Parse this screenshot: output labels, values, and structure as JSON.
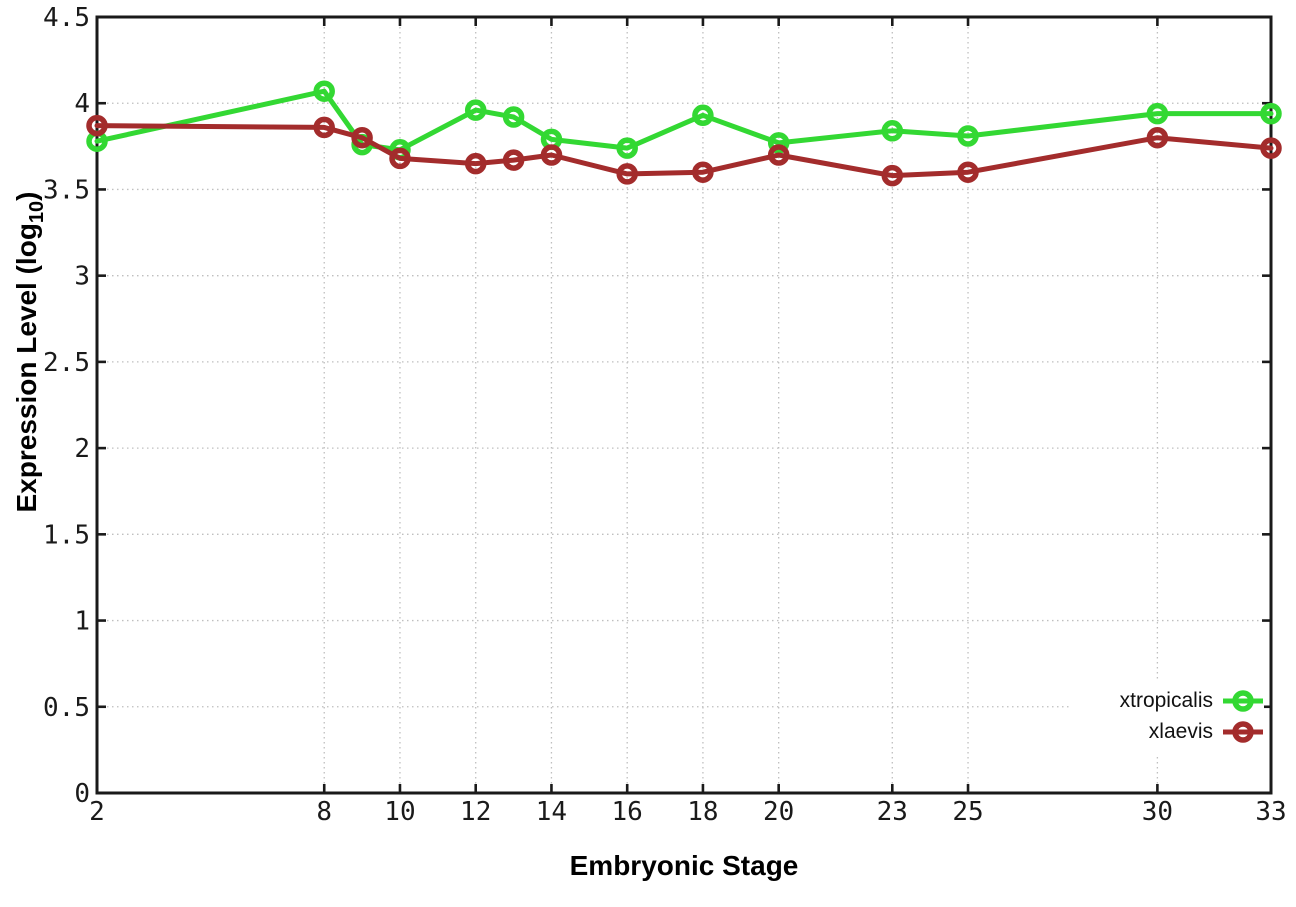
{
  "chart_data": {
    "type": "line",
    "title": "",
    "xlabel": "Embryonic Stage",
    "ylabel": "Expression Level (log10)",
    "ylabel_parts": {
      "main": "Expression Level (log",
      "sub": "10",
      "close": ")"
    },
    "xlim": [
      2,
      33
    ],
    "ylim": [
      0,
      4.5
    ],
    "xticks": [
      2,
      8,
      10,
      12,
      14,
      16,
      18,
      20,
      23,
      25,
      30,
      33
    ],
    "xtick_labels": [
      "2",
      "8",
      "10",
      "12",
      "14",
      "16",
      "18",
      "20",
      "23",
      "25",
      "30",
      "33"
    ],
    "yticks": [
      0,
      0.5,
      1,
      1.5,
      2,
      2.5,
      3,
      3.5,
      4,
      4.5
    ],
    "ytick_labels": [
      "0",
      "0.5",
      "1",
      "1.5",
      "2",
      "2.5",
      "3",
      "3.5",
      "4",
      "4.5"
    ],
    "grid": true,
    "legend_position": "bottom-right",
    "x": [
      2,
      8,
      9,
      10,
      12,
      13,
      14,
      16,
      18,
      20,
      23,
      25,
      30,
      33
    ],
    "series": [
      {
        "name": "xtropicalis",
        "color": "#33d833",
        "marker": "open-circle",
        "values": [
          3.78,
          4.07,
          3.76,
          3.73,
          3.96,
          3.92,
          3.79,
          3.74,
          3.93,
          3.77,
          3.84,
          3.81,
          3.94,
          3.94
        ]
      },
      {
        "name": "xlaevis",
        "color": "#a32c2c",
        "marker": "open-circle",
        "values": [
          3.87,
          3.86,
          3.8,
          3.68,
          3.65,
          3.67,
          3.7,
          3.59,
          3.6,
          3.7,
          3.58,
          3.6,
          3.8,
          3.74
        ]
      }
    ],
    "colors": {
      "axis": "#1a1a1a",
      "grid": "#bfbfbf",
      "background": "#ffffff"
    }
  }
}
